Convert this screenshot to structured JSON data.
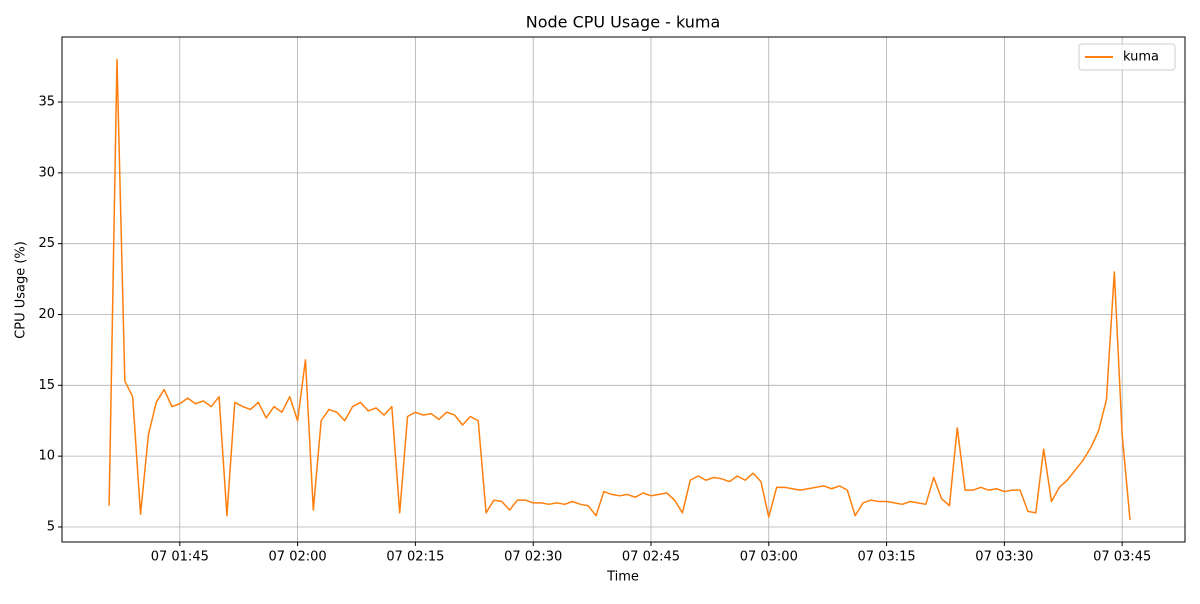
{
  "chart_data": {
    "type": "line",
    "title": "Node CPU Usage - kuma",
    "x_label": "Time",
    "y_label": "CPU Usage (%)",
    "x": [
      "07 01:36",
      "07 01:37",
      "07 01:38",
      "07 01:39",
      "07 01:40",
      "07 01:41",
      "07 01:42",
      "07 01:43",
      "07 01:44",
      "07 01:45",
      "07 01:46",
      "07 01:47",
      "07 01:48",
      "07 01:49",
      "07 01:50",
      "07 01:51",
      "07 01:52",
      "07 01:53",
      "07 01:54",
      "07 01:55",
      "07 01:56",
      "07 01:57",
      "07 01:58",
      "07 01:59",
      "07 02:00",
      "07 02:01",
      "07 02:02",
      "07 02:03",
      "07 02:04",
      "07 02:05",
      "07 02:06",
      "07 02:07",
      "07 02:08",
      "07 02:09",
      "07 02:10",
      "07 02:11",
      "07 02:12",
      "07 02:13",
      "07 02:14",
      "07 02:15",
      "07 02:16",
      "07 02:17",
      "07 02:18",
      "07 02:19",
      "07 02:20",
      "07 02:21",
      "07 02:22",
      "07 02:23",
      "07 02:24",
      "07 02:25",
      "07 02:26",
      "07 02:27",
      "07 02:28",
      "07 02:29",
      "07 02:30",
      "07 02:31",
      "07 02:32",
      "07 02:33",
      "07 02:34",
      "07 02:35",
      "07 02:36",
      "07 02:37",
      "07 02:38",
      "07 02:39",
      "07 02:40",
      "07 02:41",
      "07 02:42",
      "07 02:43",
      "07 02:44",
      "07 02:45",
      "07 02:46",
      "07 02:47",
      "07 02:48",
      "07 02:49",
      "07 02:50",
      "07 02:51",
      "07 02:52",
      "07 02:53",
      "07 02:54",
      "07 02:55",
      "07 02:56",
      "07 02:57",
      "07 02:58",
      "07 02:59",
      "07 03:00",
      "07 03:01",
      "07 03:02",
      "07 03:03",
      "07 03:04",
      "07 03:05",
      "07 03:06",
      "07 03:07",
      "07 03:08",
      "07 03:09",
      "07 03:10",
      "07 03:11",
      "07 03:12",
      "07 03:13",
      "07 03:14",
      "07 03:15",
      "07 03:16",
      "07 03:17",
      "07 03:18",
      "07 03:19",
      "07 03:20",
      "07 03:21",
      "07 03:22",
      "07 03:23",
      "07 03:24",
      "07 03:25",
      "07 03:26",
      "07 03:27",
      "07 03:28",
      "07 03:29",
      "07 03:30",
      "07 03:31",
      "07 03:32",
      "07 03:33",
      "07 03:34",
      "07 03:35",
      "07 03:36",
      "07 03:37",
      "07 03:38",
      "07 03:39",
      "07 03:40",
      "07 03:41",
      "07 03:42",
      "07 03:43",
      "07 03:44",
      "07 03:45",
      "07 03:46"
    ],
    "series": [
      {
        "name": "kuma",
        "color": "#ff7f0e",
        "values": [
          6.5,
          38,
          15.3,
          14.2,
          5.9,
          11.5,
          13.8,
          14.7,
          13.5,
          13.7,
          14.1,
          13.7,
          13.9,
          13.5,
          14.2,
          5.8,
          13.8,
          13.5,
          13.3,
          13.8,
          12.7,
          13.5,
          13.1,
          14.2,
          12.5,
          16.8,
          6.2,
          12.5,
          13.3,
          13.1,
          12.5,
          13.5,
          13.8,
          13.2,
          13.4,
          12.9,
          13.5,
          6.0,
          12.8,
          13.1,
          12.9,
          13.0,
          12.6,
          13.1,
          12.9,
          12.2,
          12.8,
          12.5,
          6.0,
          6.9,
          6.8,
          6.2,
          6.9,
          6.9,
          6.7,
          6.7,
          6.6,
          6.7,
          6.6,
          6.8,
          6.6,
          6.5,
          5.8,
          7.5,
          7.3,
          7.2,
          7.3,
          7.1,
          7.4,
          7.2,
          7.3,
          7.4,
          6.9,
          6.0,
          8.3,
          8.6,
          8.3,
          8.5,
          8.4,
          8.2,
          8.6,
          8.3,
          8.8,
          8.2,
          5.7,
          7.8,
          7.8,
          7.7,
          7.6,
          7.7,
          7.8,
          7.9,
          7.7,
          7.9,
          7.6,
          5.8,
          6.7,
          6.9,
          6.8,
          6.8,
          6.7,
          6.6,
          6.8,
          6.7,
          6.6,
          8.5,
          7.0,
          6.5,
          12.0,
          7.6,
          7.6,
          7.8,
          7.6,
          7.7,
          7.5,
          7.6,
          7.6,
          6.1,
          6.0,
          10.5,
          6.8,
          7.8,
          8.3,
          9.0,
          9.7,
          10.6,
          11.8,
          14.0,
          23,
          11.5,
          5.5
        ]
      }
    ],
    "xlim": [
      "07 01:30",
      "07 03:53"
    ],
    "xticks": [
      "07 01:45",
      "07 02:00",
      "07 02:15",
      "07 02:30",
      "07 02:45",
      "07 03:00",
      "07 03:15",
      "07 03:30",
      "07 03:45"
    ],
    "ylim": [
      3.94,
      39.59
    ],
    "yticks": [
      5,
      10,
      15,
      20,
      25,
      30,
      35
    ],
    "grid": true,
    "legend": "upper right"
  }
}
